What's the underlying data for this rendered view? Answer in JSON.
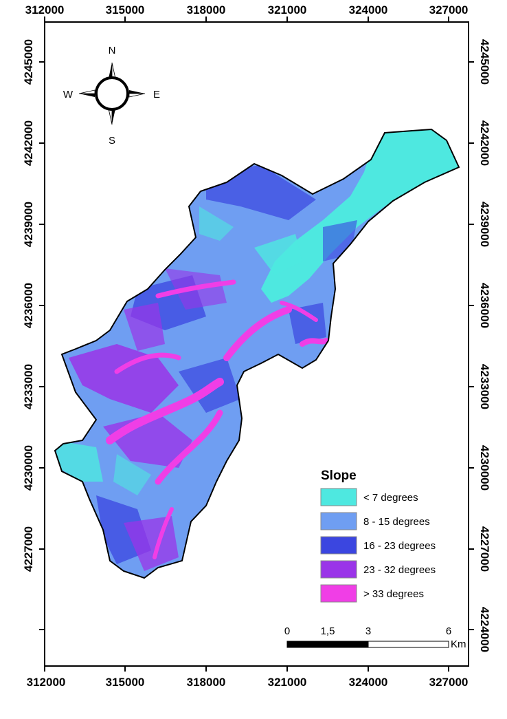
{
  "map": {
    "x_ticks": [
      "312000",
      "315000",
      "318000",
      "321000",
      "324000",
      "327000"
    ],
    "y_ticks": [
      "4245000",
      "4242000",
      "4239000",
      "4236000",
      "4233000",
      "4230000",
      "4227000",
      "4224000"
    ]
  },
  "compass": {
    "north": "N",
    "south": "S",
    "east": "E",
    "west": "W",
    "icon": "north-arrow-compass"
  },
  "legend": {
    "title": "Slope",
    "items": [
      {
        "label": "< 7 degrees",
        "color": "#4ee8e0"
      },
      {
        "label": "8 - 15 degrees",
        "color": "#6f9ef2"
      },
      {
        "label": "16 - 23 degrees",
        "color": "#3b46e0"
      },
      {
        "label": "23 - 32 degrees",
        "color": "#9a34e8"
      },
      {
        "label": "> 33 degrees",
        "color": "#f03ee6"
      }
    ]
  },
  "scale_bar": {
    "labels": [
      "0",
      "1,5",
      "3",
      "6"
    ],
    "unit": "Km"
  }
}
